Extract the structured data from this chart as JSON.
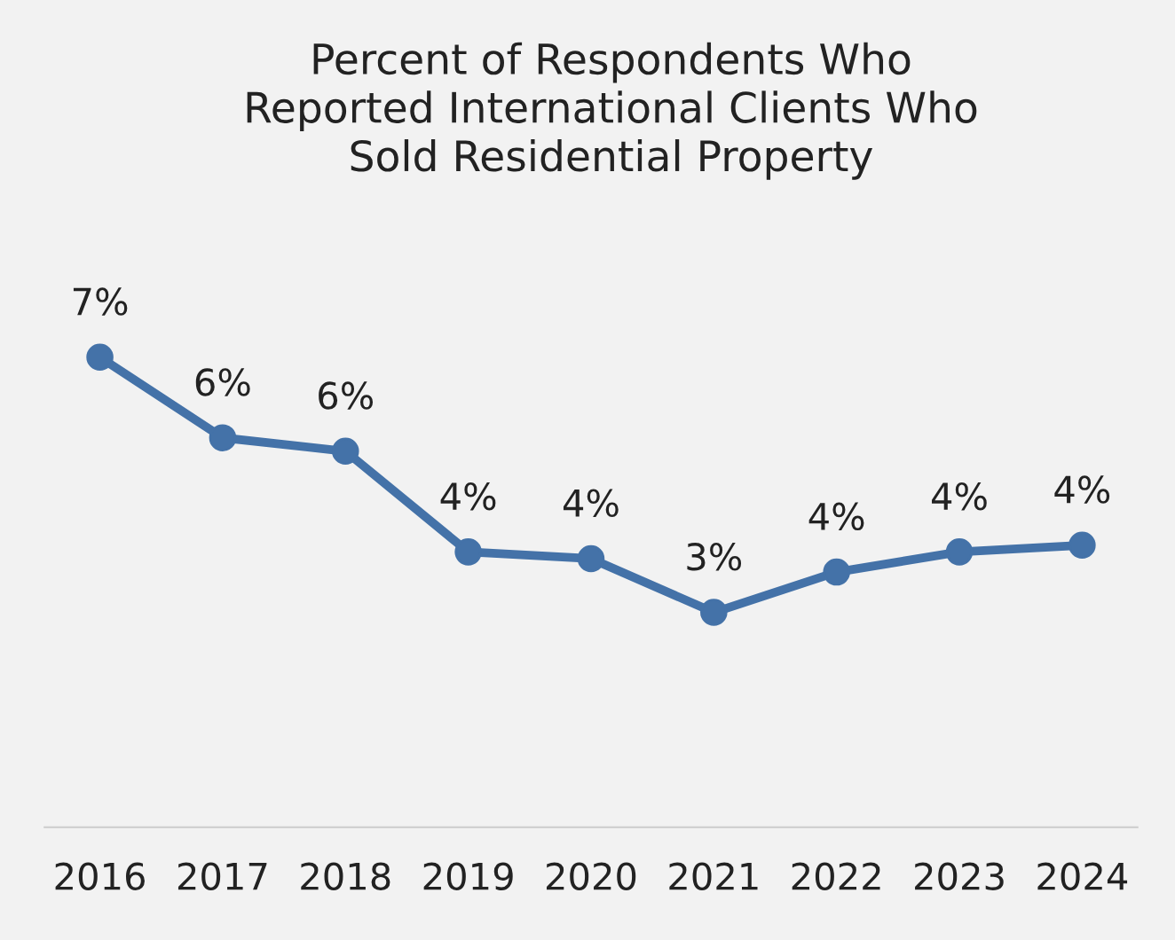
{
  "chart_data": {
    "type": "line",
    "title": "Percent of Respondents Who\nReported International Clients Who\nSold Residential Property",
    "categories": [
      "2016",
      "2017",
      "2018",
      "2019",
      "2020",
      "2021",
      "2022",
      "2023",
      "2024"
    ],
    "series": [
      {
        "color": "#4472a8",
        "values": [
          7.0,
          5.8,
          5.6,
          4.1,
          4.0,
          3.2,
          3.8,
          4.1,
          4.2
        ],
        "value_labels": [
          "7%",
          "6%",
          "6%",
          "4%",
          "4%",
          "3%",
          "4%",
          "4%",
          "4%"
        ]
      }
    ],
    "marker": "circle",
    "line_style": "solid",
    "grid": false,
    "legend": false
  }
}
